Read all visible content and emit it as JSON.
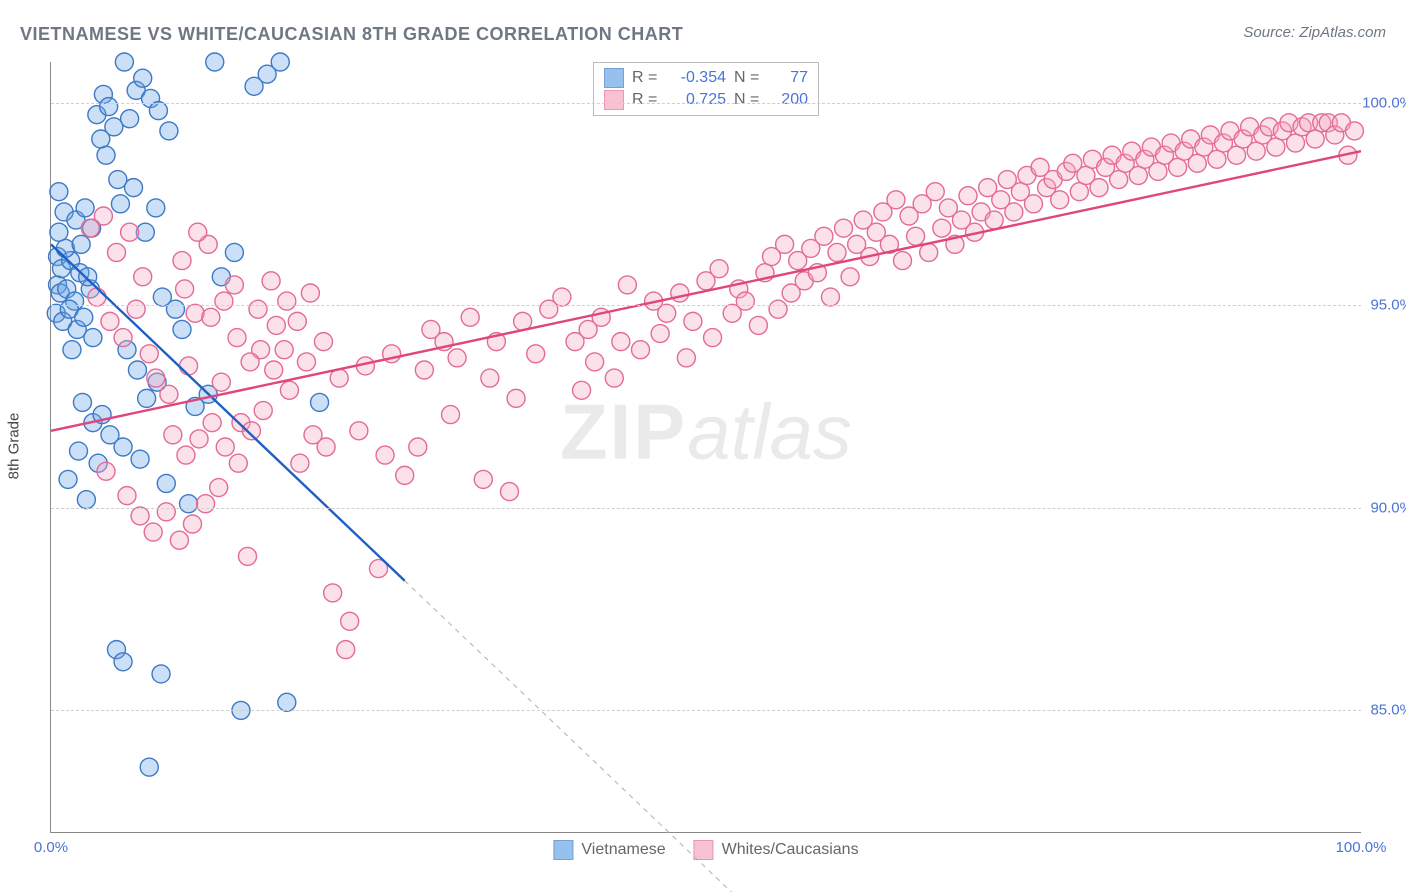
{
  "chart": {
    "type": "scatter",
    "title": "VIETNAMESE VS WHITE/CAUCASIAN 8TH GRADE CORRELATION CHART",
    "source_prefix": "Source: ",
    "source": "ZipAtlas.com",
    "ylabel": "8th Grade",
    "watermark_bold": "ZIP",
    "watermark_rest": "atlas",
    "background_color": "#ffffff",
    "grid_color": "#cfcfcf",
    "axis_color": "#888888",
    "text_color": "#6f7785",
    "value_color": "#4b74d6",
    "xlim": [
      0,
      100
    ],
    "ylim": [
      82,
      101
    ],
    "x_ticks": [
      0,
      100
    ],
    "x_tick_labels": [
      "0.0%",
      "100.0%"
    ],
    "y_ticks": [
      85,
      90,
      95,
      100
    ],
    "y_tick_labels": [
      "85.0%",
      "90.0%",
      "95.0%",
      "100.0%"
    ],
    "marker_radius": 9,
    "marker_fill_opacity": 0.35,
    "marker_stroke_width": 1.4,
    "trend_line_width": 2.4,
    "trend_dash": "5,5",
    "trend_dash_color": "#bbbbbb",
    "series": [
      {
        "key": "vietnamese",
        "label": "Vietnamese",
        "color": "#6aa6e6",
        "stroke": "#3d79c7",
        "line_color": "#1f5fc4",
        "R": "-0.354",
        "N": "77",
        "trend": {
          "x1": 0,
          "y1": 96.5,
          "x2": 27,
          "y2": 88.2,
          "extend_x": 52,
          "extend_y": 80.5
        },
        "points": [
          [
            0.5,
            96.2
          ],
          [
            0.5,
            95.5
          ],
          [
            0.8,
            95.9
          ],
          [
            0.6,
            96.8
          ],
          [
            1,
            97.3
          ],
          [
            0.4,
            94.8
          ],
          [
            1.5,
            96.1
          ],
          [
            0.7,
            95.3
          ],
          [
            1.2,
            95.4
          ],
          [
            0.9,
            94.6
          ],
          [
            1.8,
            95.1
          ],
          [
            2.2,
            95.8
          ],
          [
            1.4,
            94.9
          ],
          [
            2,
            94.4
          ],
          [
            2.5,
            94.7
          ],
          [
            1.6,
            93.9
          ],
          [
            3,
            95.4
          ],
          [
            2.8,
            95.7
          ],
          [
            3.2,
            94.2
          ],
          [
            1.1,
            96.4
          ],
          [
            0.6,
            97.8
          ],
          [
            2.3,
            96.5
          ],
          [
            1.9,
            97.1
          ],
          [
            2.6,
            97.4
          ],
          [
            3.1,
            96.9
          ],
          [
            3.5,
            99.7
          ],
          [
            4,
            100.2
          ],
          [
            4.2,
            98.7
          ],
          [
            4.8,
            99.4
          ],
          [
            5.1,
            98.1
          ],
          [
            4.4,
            99.9
          ],
          [
            3.8,
            99.1
          ],
          [
            5.6,
            101
          ],
          [
            6,
            99.6
          ],
          [
            6.5,
            100.3
          ],
          [
            7,
            100.6
          ],
          [
            7.6,
            100.1
          ],
          [
            8.2,
            99.8
          ],
          [
            9,
            99.3
          ],
          [
            5.3,
            97.5
          ],
          [
            6.3,
            97.9
          ],
          [
            7.2,
            96.8
          ],
          [
            8,
            97.4
          ],
          [
            8.5,
            95.2
          ],
          [
            9.5,
            94.9
          ],
          [
            10,
            94.4
          ],
          [
            5.8,
            93.9
          ],
          [
            6.6,
            93.4
          ],
          [
            7.3,
            92.7
          ],
          [
            8.1,
            93.1
          ],
          [
            2.4,
            92.6
          ],
          [
            3.2,
            92.1
          ],
          [
            3.9,
            92.3
          ],
          [
            4.5,
            91.8
          ],
          [
            2.1,
            91.4
          ],
          [
            3.6,
            91.1
          ],
          [
            1.3,
            90.7
          ],
          [
            2.7,
            90.2
          ],
          [
            5.5,
            91.5
          ],
          [
            6.8,
            91.2
          ],
          [
            8.8,
            90.6
          ],
          [
            10.5,
            90.1
          ],
          [
            11,
            92.5
          ],
          [
            12,
            92.8
          ],
          [
            12.5,
            101
          ],
          [
            13,
            95.7
          ],
          [
            14,
            96.3
          ],
          [
            15.5,
            100.4
          ],
          [
            16.5,
            100.7
          ],
          [
            17.5,
            101
          ],
          [
            5,
            86.5
          ],
          [
            5.5,
            86.2
          ],
          [
            7.5,
            83.6
          ],
          [
            8.4,
            85.9
          ],
          [
            14.5,
            85
          ],
          [
            18,
            85.2
          ],
          [
            20.5,
            92.6
          ]
        ]
      },
      {
        "key": "whites",
        "label": "Whites/Caucasians",
        "color": "#f4a9c0",
        "stroke": "#e56a97",
        "line_color": "#e0457e",
        "R": "0.725",
        "N": "200",
        "trend": {
          "x1": 0,
          "y1": 91.9,
          "x2": 100,
          "y2": 98.8
        },
        "points": [
          [
            3,
            96.9
          ],
          [
            4,
            97.2
          ],
          [
            5,
            96.3
          ],
          [
            6,
            96.8
          ],
          [
            7,
            95.7
          ],
          [
            3.5,
            95.2
          ],
          [
            4.5,
            94.6
          ],
          [
            5.5,
            94.2
          ],
          [
            6.5,
            94.9
          ],
          [
            7.5,
            93.8
          ],
          [
            8,
            93.2
          ],
          [
            9,
            92.8
          ],
          [
            10,
            96.1
          ],
          [
            10.5,
            93.5
          ],
          [
            11,
            94.8
          ],
          [
            12,
            96.5
          ],
          [
            13,
            93.1
          ],
          [
            14,
            95.5
          ],
          [
            14.5,
            92.1
          ],
          [
            15,
            88.8
          ],
          [
            16,
            93.9
          ],
          [
            17,
            93.4
          ],
          [
            18,
            95.1
          ],
          [
            19,
            91.1
          ],
          [
            19.5,
            93.6
          ],
          [
            20,
            91.8
          ],
          [
            21,
            91.5
          ],
          [
            21.5,
            87.9
          ],
          [
            22,
            93.2
          ],
          [
            22.5,
            86.5
          ],
          [
            22.8,
            87.2
          ],
          [
            23.5,
            91.9
          ],
          [
            24,
            93.5
          ],
          [
            25,
            88.5
          ],
          [
            25.5,
            91.3
          ],
          [
            26,
            93.8
          ],
          [
            27,
            90.8
          ],
          [
            28,
            91.5
          ],
          [
            28.5,
            93.4
          ],
          [
            29,
            94.4
          ],
          [
            30,
            94.1
          ],
          [
            30.5,
            92.3
          ],
          [
            31,
            93.7
          ],
          [
            32,
            94.7
          ],
          [
            33,
            90.7
          ],
          [
            33.5,
            93.2
          ],
          [
            34,
            94.1
          ],
          [
            35,
            90.4
          ],
          [
            35.5,
            92.7
          ],
          [
            36,
            94.6
          ],
          [
            37,
            93.8
          ],
          [
            38,
            94.9
          ],
          [
            39,
            95.2
          ],
          [
            40,
            94.1
          ],
          [
            40.5,
            92.9
          ],
          [
            41,
            94.4
          ],
          [
            41.5,
            93.6
          ],
          [
            42,
            94.7
          ],
          [
            43,
            93.2
          ],
          [
            43.5,
            94.1
          ],
          [
            44,
            95.5
          ],
          [
            45,
            93.9
          ],
          [
            46,
            95.1
          ],
          [
            46.5,
            94.3
          ],
          [
            47,
            94.8
          ],
          [
            48,
            95.3
          ],
          [
            48.5,
            93.7
          ],
          [
            49,
            94.6
          ],
          [
            50,
            95.6
          ],
          [
            50.5,
            94.2
          ],
          [
            51,
            95.9
          ],
          [
            52,
            94.8
          ],
          [
            52.5,
            95.4
          ],
          [
            53,
            95.1
          ],
          [
            54,
            94.5
          ],
          [
            54.5,
            95.8
          ],
          [
            55,
            96.2
          ],
          [
            55.5,
            94.9
          ],
          [
            56,
            96.5
          ],
          [
            56.5,
            95.3
          ],
          [
            57,
            96.1
          ],
          [
            57.5,
            95.6
          ],
          [
            58,
            96.4
          ],
          [
            58.5,
            95.8
          ],
          [
            59,
            96.7
          ],
          [
            59.5,
            95.2
          ],
          [
            60,
            96.3
          ],
          [
            60.5,
            96.9
          ],
          [
            61,
            95.7
          ],
          [
            61.5,
            96.5
          ],
          [
            62,
            97.1
          ],
          [
            62.5,
            96.2
          ],
          [
            63,
            96.8
          ],
          [
            63.5,
            97.3
          ],
          [
            64,
            96.5
          ],
          [
            64.5,
            97.6
          ],
          [
            65,
            96.1
          ],
          [
            65.5,
            97.2
          ],
          [
            66,
            96.7
          ],
          [
            66.5,
            97.5
          ],
          [
            67,
            96.3
          ],
          [
            67.5,
            97.8
          ],
          [
            68,
            96.9
          ],
          [
            68.5,
            97.4
          ],
          [
            69,
            96.5
          ],
          [
            69.5,
            97.1
          ],
          [
            70,
            97.7
          ],
          [
            70.5,
            96.8
          ],
          [
            71,
            97.3
          ],
          [
            71.5,
            97.9
          ],
          [
            72,
            97.1
          ],
          [
            72.5,
            97.6
          ],
          [
            73,
            98.1
          ],
          [
            73.5,
            97.3
          ],
          [
            74,
            97.8
          ],
          [
            74.5,
            98.2
          ],
          [
            75,
            97.5
          ],
          [
            75.5,
            98.4
          ],
          [
            76,
            97.9
          ],
          [
            76.5,
            98.1
          ],
          [
            77,
            97.6
          ],
          [
            77.5,
            98.3
          ],
          [
            78,
            98.5
          ],
          [
            78.5,
            97.8
          ],
          [
            79,
            98.2
          ],
          [
            79.5,
            98.6
          ],
          [
            80,
            97.9
          ],
          [
            80.5,
            98.4
          ],
          [
            81,
            98.7
          ],
          [
            81.5,
            98.1
          ],
          [
            82,
            98.5
          ],
          [
            82.5,
            98.8
          ],
          [
            83,
            98.2
          ],
          [
            83.5,
            98.6
          ],
          [
            84,
            98.9
          ],
          [
            84.5,
            98.3
          ],
          [
            85,
            98.7
          ],
          [
            85.5,
            99
          ],
          [
            86,
            98.4
          ],
          [
            86.5,
            98.8
          ],
          [
            87,
            99.1
          ],
          [
            87.5,
            98.5
          ],
          [
            88,
            98.9
          ],
          [
            88.5,
            99.2
          ],
          [
            89,
            98.6
          ],
          [
            89.5,
            99
          ],
          [
            90,
            99.3
          ],
          [
            90.5,
            98.7
          ],
          [
            91,
            99.1
          ],
          [
            91.5,
            99.4
          ],
          [
            92,
            98.8
          ],
          [
            92.5,
            99.2
          ],
          [
            93,
            99.4
          ],
          [
            93.5,
            98.9
          ],
          [
            94,
            99.3
          ],
          [
            94.5,
            99.5
          ],
          [
            95,
            99
          ],
          [
            95.5,
            99.4
          ],
          [
            96,
            99.5
          ],
          [
            96.5,
            99.1
          ],
          [
            97,
            99.5
          ],
          [
            97.5,
            99.5
          ],
          [
            98,
            99.2
          ],
          [
            98.5,
            99.5
          ],
          [
            99,
            98.7
          ],
          [
            99.5,
            99.3
          ],
          [
            4.2,
            90.9
          ],
          [
            5.8,
            90.3
          ],
          [
            6.8,
            89.8
          ],
          [
            7.8,
            89.4
          ],
          [
            8.8,
            89.9
          ],
          [
            9.8,
            89.2
          ],
          [
            10.8,
            89.6
          ],
          [
            11.8,
            90.1
          ],
          [
            12.8,
            90.5
          ],
          [
            10.2,
            95.4
          ],
          [
            11.2,
            96.8
          ],
          [
            12.2,
            94.7
          ],
          [
            13.2,
            95.1
          ],
          [
            14.2,
            94.2
          ],
          [
            15.2,
            93.6
          ],
          [
            16.2,
            92.4
          ],
          [
            17.2,
            94.5
          ],
          [
            18.2,
            92.9
          ],
          [
            15.8,
            94.9
          ],
          [
            16.8,
            95.6
          ],
          [
            17.8,
            93.9
          ],
          [
            18.8,
            94.6
          ],
          [
            19.8,
            95.3
          ],
          [
            20.8,
            94.1
          ],
          [
            9.3,
            91.8
          ],
          [
            10.3,
            91.3
          ],
          [
            11.3,
            91.7
          ],
          [
            12.3,
            92.1
          ],
          [
            13.3,
            91.5
          ],
          [
            14.3,
            91.1
          ],
          [
            15.3,
            91.9
          ]
        ]
      }
    ],
    "stat_labels": {
      "R": "R =",
      "N": "N ="
    }
  }
}
